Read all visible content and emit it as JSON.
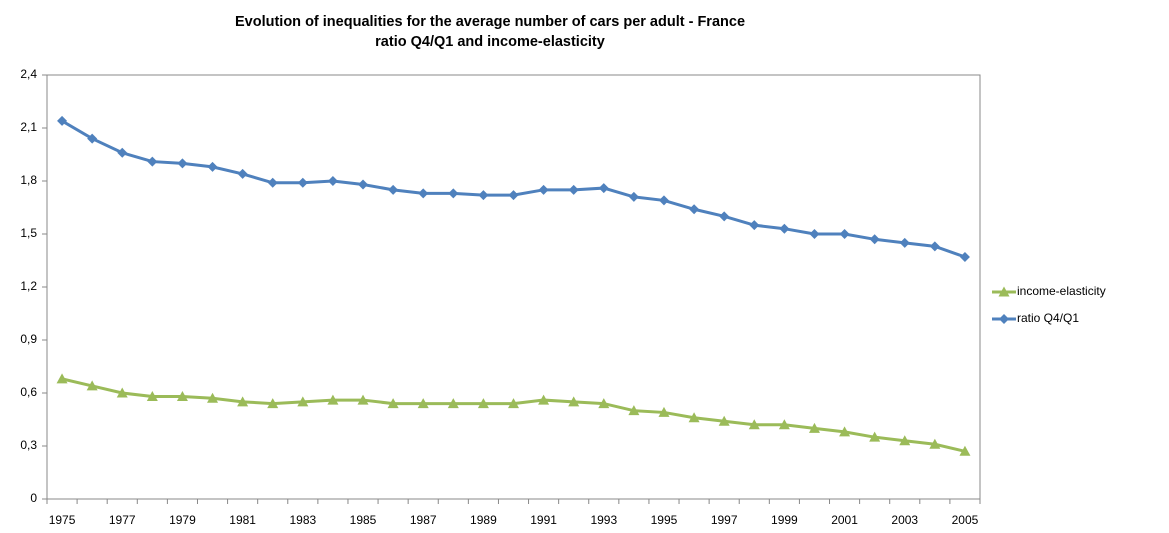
{
  "chart_data": {
    "type": "line",
    "title": "Evolution of inequalities for the average number of cars per adult  - France",
    "subtitle": "ratio Q4/Q1 and income-elasticity",
    "categories": [
      "1975",
      null,
      "1977",
      null,
      "1979",
      null,
      "1981",
      null,
      "1983",
      null,
      "1985",
      null,
      "1987",
      null,
      "1989",
      null,
      "1991",
      null,
      "1993",
      null,
      "1995",
      null,
      "1997",
      null,
      "1999",
      null,
      "2001",
      null,
      "2003",
      null,
      "2005"
    ],
    "series": [
      {
        "name": "income-elasticity",
        "color": "#9bbb59",
        "marker": "triangle",
        "values": [
          0.68,
          0.64,
          0.6,
          0.58,
          0.58,
          0.57,
          0.55,
          0.54,
          0.55,
          0.56,
          0.56,
          0.54,
          0.54,
          0.54,
          0.54,
          0.54,
          0.56,
          0.55,
          0.54,
          0.5,
          0.49,
          0.46,
          0.44,
          0.42,
          0.42,
          0.4,
          0.38,
          0.35,
          0.33,
          0.31,
          0.27
        ]
      },
      {
        "name": "ratio Q4/Q1",
        "color": "#4f81bd",
        "marker": "diamond",
        "values": [
          2.14,
          2.04,
          1.96,
          1.91,
          1.9,
          1.88,
          1.84,
          1.79,
          1.79,
          1.8,
          1.78,
          1.75,
          1.73,
          1.73,
          1.72,
          1.72,
          1.75,
          1.75,
          1.76,
          1.71,
          1.69,
          1.64,
          1.6,
          1.55,
          1.53,
          1.5,
          1.5,
          1.47,
          1.45,
          1.43,
          1.37
        ]
      }
    ],
    "ylim": [
      0,
      2.4
    ],
    "yticks": [
      0,
      {
        "value": 0.3,
        "label": "0,3"
      },
      {
        "value": 0.6,
        "label": "0,6"
      },
      {
        "value": 0.9,
        "label": "0,9"
      },
      {
        "value": 1.2,
        "label": "1,2"
      },
      {
        "value": 1.5,
        "label": "1,5"
      },
      {
        "value": 1.8,
        "label": "1,8"
      },
      {
        "value": 2.1,
        "label": "2,1"
      },
      {
        "value": 2.4,
        "label": "2,4"
      }
    ],
    "grid": false,
    "legend": "right"
  }
}
